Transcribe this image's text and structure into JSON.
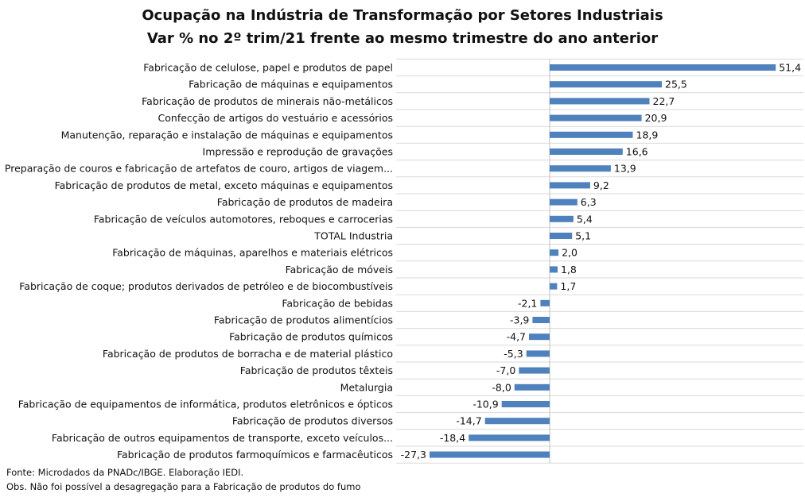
{
  "chart_data": {
    "type": "bar",
    "orientation": "horizontal",
    "title": "Ocupação na Indústria de Transformação por Setores Industriais",
    "subtitle": "Var % no 2º trim/21 frente ao mesmo trimestre do ano anterior",
    "categories": [
      "Fabricação de celulose, papel e produtos de papel",
      "Fabricação de máquinas e equipamentos",
      "Fabricação de produtos de minerais não-metálicos",
      "Confecção de artigos do vestuário e acessórios",
      "Manutenção, reparação e instalação de máquinas e equipamentos",
      "Impressão e reprodução de gravações",
      "Preparação de couros e fabricação de artefatos de couro, artigos de viagem...",
      "Fabricação de produtos de metal, exceto máquinas e equipamentos",
      "Fabricação de produtos de madeira",
      "Fabricação de veículos automotores, reboques e carrocerias",
      "TOTAL Industria",
      "Fabricação de máquinas, aparelhos e materiais elétricos",
      "Fabricação de móveis",
      "Fabricação de coque; produtos derivados de petróleo e de biocombustíveis",
      "Fabricação de bebidas",
      "Fabricação de produtos alimentícios",
      "Fabricação de produtos químicos",
      "Fabricação de produtos de borracha e de material plástico",
      "Fabricação de produtos têxteis",
      "Metalurgia",
      "Fabricação de equipamentos de informática, produtos eletrônicos e ópticos",
      "Fabricação de produtos diversos",
      "Fabricação de outros equipamentos de transporte, exceto veículos...",
      "Fabricação de produtos farmoquímicos e farmacêuticos"
    ],
    "values": [
      51.4,
      25.5,
      22.7,
      20.9,
      18.9,
      16.6,
      13.9,
      9.2,
      6.3,
      5.4,
      5.1,
      2.0,
      1.8,
      1.7,
      -2.1,
      -3.9,
      -4.7,
      -5.3,
      -7.0,
      -8.0,
      -10.9,
      -14.7,
      -18.4,
      -27.3
    ],
    "value_labels": [
      "51,4",
      "25,5",
      "22,7",
      "20,9",
      "18,9",
      "16,6",
      "13,9",
      "9,2",
      "6,3",
      "5,4",
      "5,1",
      "2,0",
      "1,8",
      "1,7",
      "-2,1",
      "-3,9",
      "-4,7",
      "-5,3",
      "-7,0",
      "-8,0",
      "-10,9",
      "-14,7",
      "-18,4",
      "-27,3"
    ],
    "xlim": [
      -28,
      54
    ],
    "grid": true,
    "bar_color": "#4f81bd",
    "grid_color": "#d9d9d9"
  },
  "notes": {
    "source": "Fonte: Microdados da PNADc/IBGE. Elaboração IEDI.",
    "obs": "Obs. Não foi possível a desagregação para a Fabricação de produtos do fumo"
  }
}
